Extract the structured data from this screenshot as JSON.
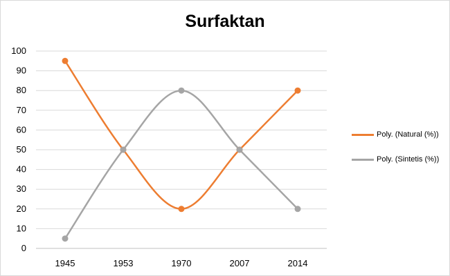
{
  "chart_data": {
    "type": "line",
    "title": "Surfaktan",
    "categories": [
      "1945",
      "1953",
      "1970",
      "2007",
      "2014"
    ],
    "ylim": [
      0,
      100
    ],
    "yticks": [
      0,
      10,
      20,
      30,
      40,
      50,
      60,
      70,
      80,
      90,
      100
    ],
    "grid": true,
    "legend_position": "right",
    "series": [
      {
        "name": "Poly. (Natural (%))",
        "values": [
          95,
          50,
          20,
          50,
          80
        ],
        "color": "#ed7d31"
      },
      {
        "name": "Poly. (Sintetis (%))",
        "values": [
          5,
          50,
          80,
          50,
          20
        ],
        "color": "#a5a5a5"
      }
    ]
  }
}
